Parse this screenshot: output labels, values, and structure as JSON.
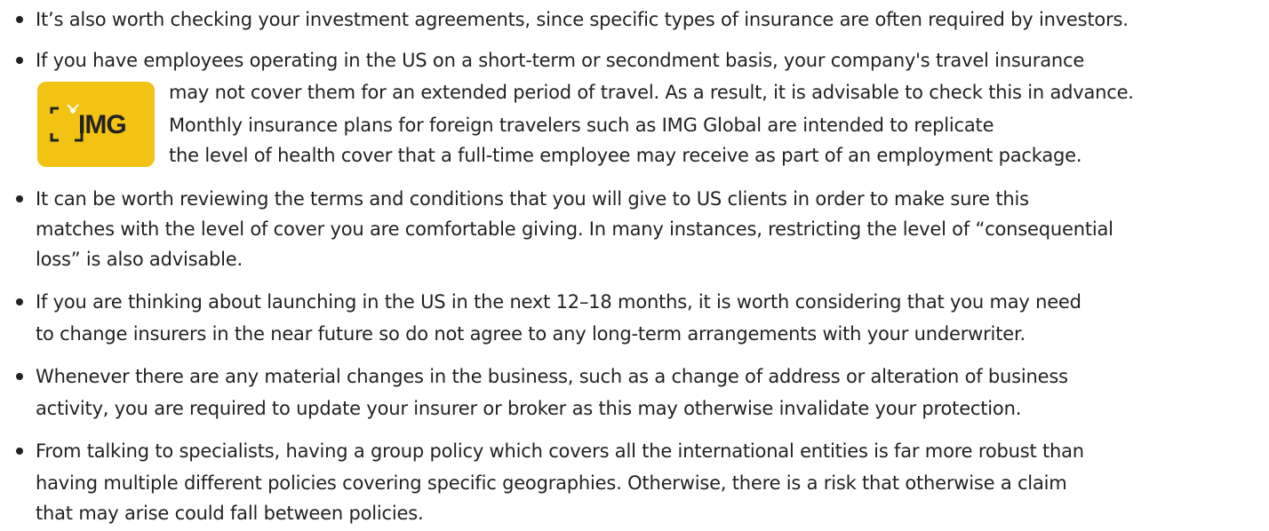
{
  "logo": {
    "text": "IMG"
  },
  "items": [
    {
      "lines": [
        "It’s also worth checking your investment agreements, since specific types of insurance are often required by investors."
      ]
    },
    {
      "lines": [
        "If you have employees operating in the US on a short-term or secondment basis, your company's travel insurance",
        "may not cover them for an extended period of travel. As a result, it is advisable to check this in advance.",
        "Monthly insurance plans for foreign travelers such as IMG Global are intended to replicate",
        "the level of health cover that a full-time employee may receive as part of an employment package."
      ]
    },
    {
      "lines": [
        "It can be worth reviewing the terms and conditions that you will give to US clients in order to make sure this",
        "matches with the level of cover you are comfortable giving. In many instances, restricting the level of “consequential",
        "loss” is also advisable."
      ]
    },
    {
      "lines": [
        "If you are thinking about launching in the US in the next 12–18 months, it is worth considering that you may need",
        "to change insurers in the near future so do not agree to any long-term arrangements with your underwriter."
      ]
    },
    {
      "lines": [
        "Whenever there are any material changes in the business, such as a change of address or alteration of business",
        "activity, you are required to update your insurer or broker as this may otherwise invalidate your protection."
      ]
    },
    {
      "lines": [
        "From talking to specialists, having a group policy which covers all the international entities is far more robust than",
        "having multiple different policies covering specific geographies. Otherwise, there is a risk that otherwise a claim",
        "that may arise could fall between policies."
      ]
    }
  ]
}
